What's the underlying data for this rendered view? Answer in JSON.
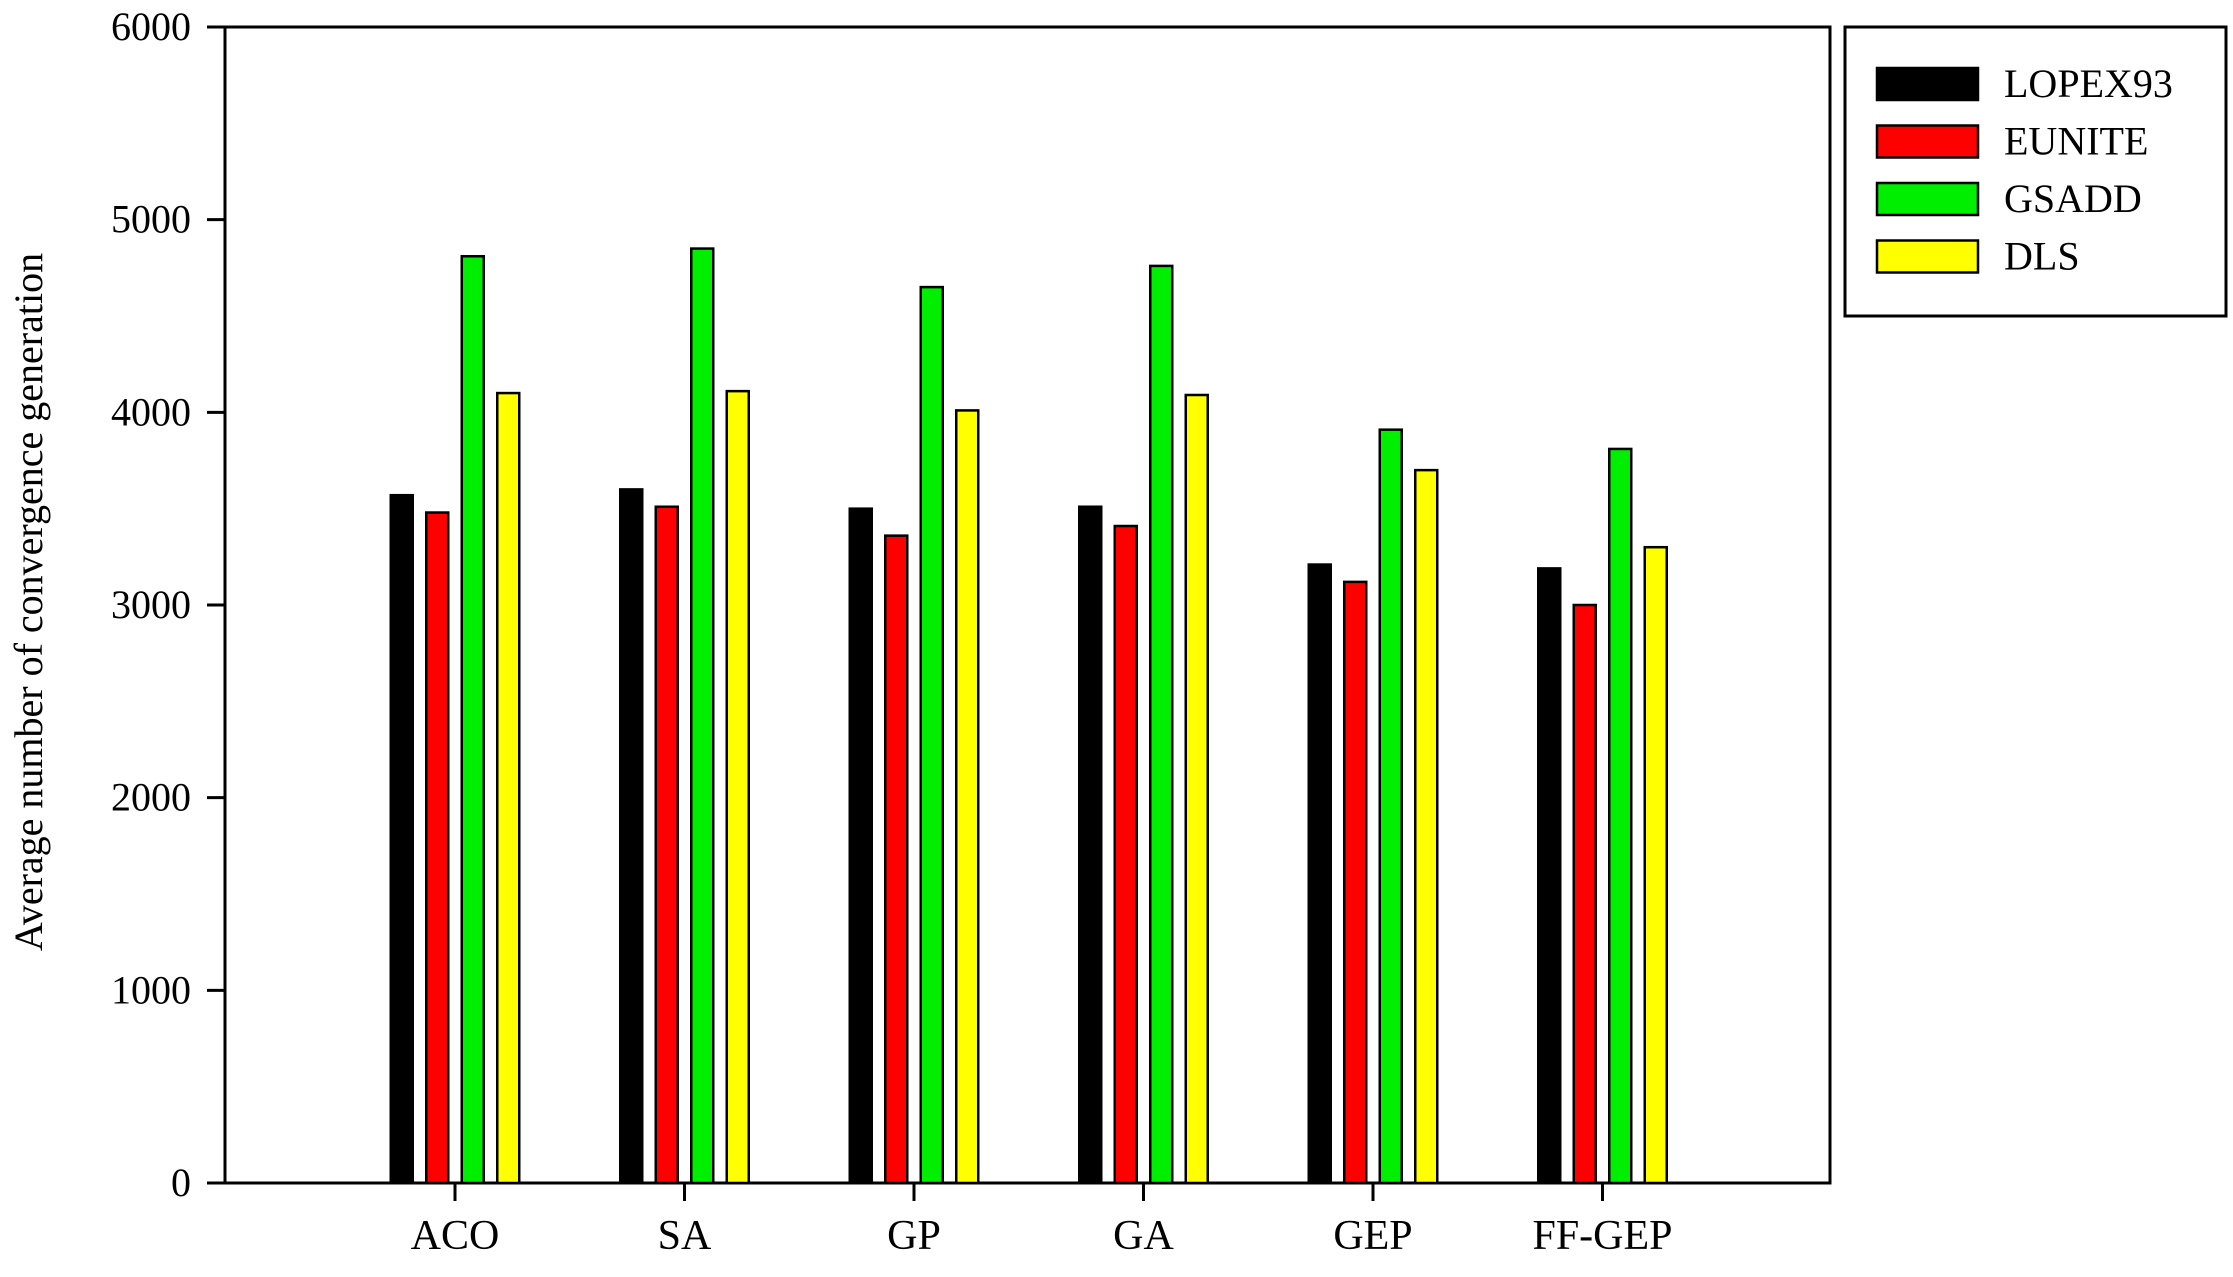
{
  "chart_data": {
    "type": "bar",
    "title": "",
    "xlabel": "",
    "ylabel": "Average number of convergence generation",
    "ylim": [
      0,
      6000
    ],
    "yticks": [
      0,
      1000,
      2000,
      3000,
      4000,
      5000,
      6000
    ],
    "categories": [
      "ACO",
      "SA",
      "GP",
      "GA",
      "GEP",
      "FF-GEP"
    ],
    "series": [
      {
        "name": "LOPEX93",
        "color": "#000000",
        "values": [
          3570,
          3600,
          3500,
          3510,
          3210,
          3190
        ]
      },
      {
        "name": "EUNITE",
        "color": "#ff0000",
        "values": [
          3480,
          3510,
          3360,
          3410,
          3120,
          3000
        ]
      },
      {
        "name": "GSADD",
        "color": "#00ee00",
        "values": [
          4810,
          4850,
          4650,
          4760,
          3910,
          3810
        ]
      },
      {
        "name": "DLS",
        "color": "#ffff00",
        "values": [
          4100,
          4110,
          4010,
          4090,
          3700,
          3300
        ]
      }
    ],
    "grid": false,
    "legend_position": "right, outside plot, top"
  }
}
